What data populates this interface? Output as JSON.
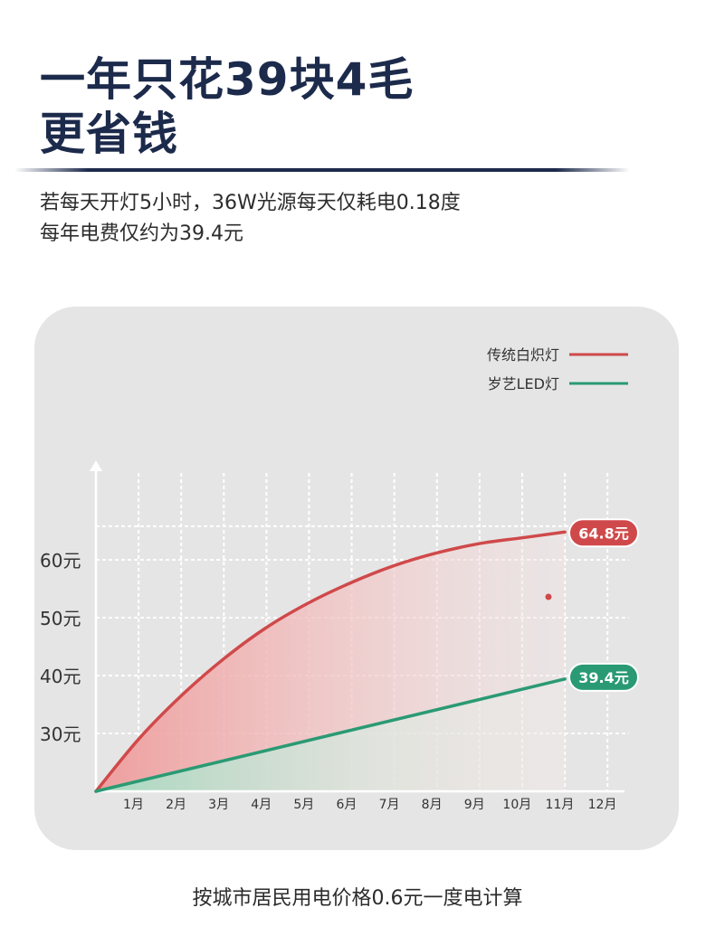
{
  "headline": {
    "line1": "一年只花39块4毛",
    "line2": "更省钱"
  },
  "description": {
    "line1": "若每天开灯5小时，36W光源每天仅耗电0.18度",
    "line2": "每年电费仅约为39.4元"
  },
  "footnote": "按城市居民用电价格0.6元一度电计算",
  "colors": {
    "title": "#1c2a4b",
    "incandescent": "#d0494a",
    "led": "#2a9a74",
    "panel": "#e5e5e5",
    "grid": "#ffffff"
  },
  "chart_data": {
    "type": "line",
    "legend_position": "top-right",
    "grid": true,
    "categories": [
      "1月",
      "2月",
      "3月",
      "4月",
      "5月",
      "6月",
      "7月",
      "8月",
      "9月",
      "10月",
      "11月",
      "12月"
    ],
    "y_ticks": [
      {
        "value": 60,
        "label": "60元"
      },
      {
        "value": 50,
        "label": "50元"
      },
      {
        "value": 40,
        "label": "40元"
      },
      {
        "value": 30,
        "label": "30元"
      }
    ],
    "ylim": [
      20,
      65
    ],
    "series": [
      {
        "name": "传统白炽灯",
        "color": "#d0494a",
        "x": [
          0,
          1,
          2,
          3,
          4,
          5,
          6,
          7,
          8,
          9,
          10,
          11
        ],
        "values": [
          20,
          29,
          36.5,
          42.9,
          48.3,
          52.6,
          56.1,
          59,
          61.2,
          62.8,
          63.8,
          64.8
        ],
        "end_label": "64.8元"
      },
      {
        "name": "岁艺LED灯",
        "color": "#2a9a74",
        "x": [
          0,
          11
        ],
        "values": [
          20,
          39.4
        ],
        "end_label": "39.4元"
      }
    ]
  }
}
